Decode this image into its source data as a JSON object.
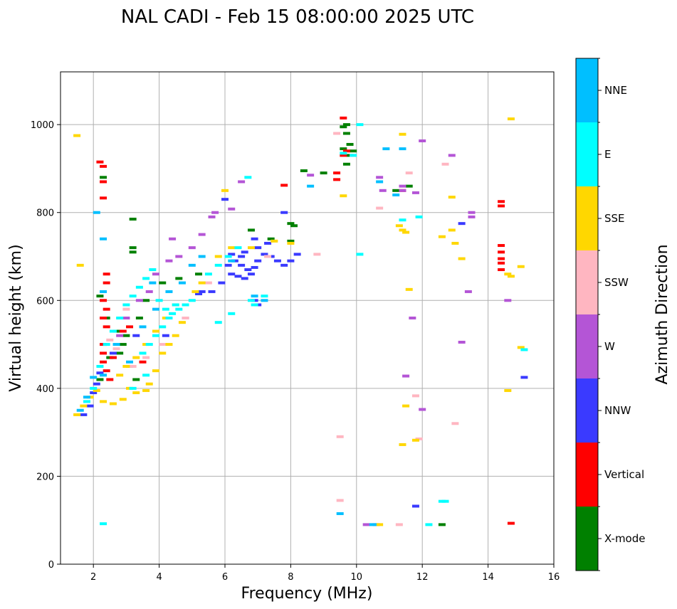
{
  "chart_data": {
    "type": "scatter",
    "title": "NAL CADI - Feb 15 08:00:00 2025 UTC",
    "xlabel": "Frequency (MHz)",
    "ylabel": "Virtual height (km)",
    "xlim": [
      1,
      16
    ],
    "ylim": [
      0,
      1120
    ],
    "xticks": [
      2,
      4,
      6,
      8,
      10,
      12,
      14,
      16
    ],
    "yticks": [
      0,
      200,
      400,
      600,
      800,
      1000
    ],
    "grid": true,
    "colorbar": {
      "title": "Azimuth Direction",
      "categories": [
        "X-mode",
        "Vertical",
        "NNW",
        "W",
        "SSW",
        "SSE",
        "E",
        "NNE"
      ],
      "colors": [
        "#008000",
        "#ff0000",
        "#3a3aff",
        "#b455d6",
        "#ffb6c1",
        "#ffd700",
        "#00ffff",
        "#00bfff"
      ]
    },
    "series": [
      {
        "name": "X-mode",
        "points": [
          [
            2.3,
            880
          ],
          [
            3.2,
            785
          ],
          [
            3.2,
            720
          ],
          [
            3.2,
            710
          ],
          [
            2.2,
            610
          ],
          [
            2.4,
            560
          ],
          [
            2.7,
            530
          ],
          [
            2.9,
            500
          ],
          [
            3.1,
            450
          ],
          [
            3.3,
            420
          ],
          [
            2.2,
            420
          ],
          [
            2.5,
            470
          ],
          [
            2.8,
            480
          ],
          [
            3.0,
            520
          ],
          [
            3.4,
            560
          ],
          [
            3.6,
            600
          ],
          [
            4.1,
            640
          ],
          [
            4.6,
            650
          ],
          [
            5.2,
            660
          ],
          [
            6.8,
            760
          ],
          [
            7.4,
            740
          ],
          [
            8.0,
            775
          ],
          [
            8.1,
            770
          ],
          [
            8.0,
            735
          ],
          [
            9.7,
            1000
          ],
          [
            9.6,
            995
          ],
          [
            9.7,
            980
          ],
          [
            9.8,
            955
          ],
          [
            9.8,
            930
          ],
          [
            9.6,
            945
          ],
          [
            9.7,
            910
          ],
          [
            9.9,
            940
          ],
          [
            11.2,
            850
          ],
          [
            11.6,
            860
          ],
          [
            12.6,
            90
          ],
          [
            8.4,
            895
          ],
          [
            9.0,
            890
          ]
        ]
      },
      {
        "name": "Vertical",
        "points": [
          [
            2.2,
            915
          ],
          [
            2.3,
            905
          ],
          [
            2.3,
            870
          ],
          [
            2.3,
            833
          ],
          [
            2.4,
            660
          ],
          [
            2.4,
            640
          ],
          [
            2.3,
            600
          ],
          [
            2.4,
            580
          ],
          [
            2.3,
            560
          ],
          [
            2.4,
            540
          ],
          [
            2.3,
            500
          ],
          [
            2.3,
            480
          ],
          [
            2.3,
            460
          ],
          [
            2.4,
            440
          ],
          [
            2.5,
            420
          ],
          [
            2.6,
            470
          ],
          [
            2.9,
            530
          ],
          [
            3.1,
            540
          ],
          [
            3.5,
            460
          ],
          [
            7.8,
            862
          ],
          [
            9.4,
            890
          ],
          [
            9.4,
            875
          ],
          [
            9.6,
            930
          ],
          [
            9.7,
            940
          ],
          [
            9.6,
            1015
          ],
          [
            11.4,
            850
          ],
          [
            14.4,
            825
          ],
          [
            14.4,
            815
          ],
          [
            14.4,
            725
          ],
          [
            14.4,
            710
          ],
          [
            14.4,
            695
          ],
          [
            14.4,
            685
          ],
          [
            14.4,
            670
          ],
          [
            14.7,
            93
          ]
        ]
      },
      {
        "name": "NNW",
        "points": [
          [
            1.7,
            340
          ],
          [
            1.9,
            360
          ],
          [
            2.0,
            390
          ],
          [
            2.1,
            410
          ],
          [
            2.2,
            435
          ],
          [
            2.6,
            480
          ],
          [
            3.3,
            520
          ],
          [
            4.2,
            520
          ],
          [
            4.8,
            560
          ],
          [
            5.2,
            615
          ],
          [
            5.6,
            620
          ],
          [
            5.9,
            640
          ],
          [
            6.2,
            660
          ],
          [
            6.4,
            655
          ],
          [
            6.6,
            650
          ],
          [
            6.8,
            660
          ],
          [
            6.9,
            675
          ],
          [
            7.0,
            690
          ],
          [
            7.2,
            705
          ],
          [
            7.4,
            700
          ],
          [
            7.6,
            690
          ],
          [
            7.8,
            680
          ],
          [
            8.0,
            690
          ],
          [
            8.2,
            705
          ],
          [
            7.0,
            720
          ],
          [
            7.3,
            730
          ],
          [
            6.9,
            740
          ],
          [
            6.5,
            700
          ],
          [
            6.1,
            680
          ],
          [
            6.3,
            690
          ],
          [
            6.5,
            680
          ],
          [
            6.7,
            670
          ],
          [
            6.2,
            705
          ],
          [
            6.6,
            710
          ],
          [
            5.3,
            620
          ],
          [
            7.8,
            800
          ],
          [
            6.0,
            830
          ],
          [
            6.9,
            600
          ],
          [
            7.0,
            590
          ],
          [
            13.2,
            775
          ],
          [
            11.8,
            132
          ],
          [
            15.1,
            425
          ]
        ]
      },
      {
        "name": "W",
        "points": [
          [
            2.8,
            520
          ],
          [
            3.0,
            560
          ],
          [
            3.4,
            600
          ],
          [
            3.7,
            620
          ],
          [
            3.9,
            660
          ],
          [
            4.3,
            690
          ],
          [
            4.6,
            700
          ],
          [
            5.0,
            720
          ],
          [
            5.3,
            750
          ],
          [
            5.6,
            790
          ],
          [
            5.7,
            800
          ],
          [
            6.2,
            808
          ],
          [
            6.5,
            870
          ],
          [
            8.6,
            885
          ],
          [
            10.7,
            880
          ],
          [
            10.8,
            850
          ],
          [
            11.4,
            860
          ],
          [
            11.4,
            850
          ],
          [
            11.8,
            845
          ],
          [
            13.5,
            800
          ],
          [
            13.5,
            790
          ],
          [
            13.4,
            620
          ],
          [
            13.2,
            505
          ],
          [
            14.6,
            600
          ],
          [
            11.5,
            428
          ],
          [
            11.7,
            560
          ],
          [
            12.0,
            352
          ],
          [
            12.0,
            963
          ],
          [
            12.9,
            930
          ],
          [
            4.4,
            740
          ],
          [
            10.3,
            90
          ],
          [
            10.6,
            90
          ]
        ]
      },
      {
        "name": "SSW",
        "points": [
          [
            2.5,
            510
          ],
          [
            2.7,
            490
          ],
          [
            3.2,
            450
          ],
          [
            3.6,
            470
          ],
          [
            4.1,
            500
          ],
          [
            4.8,
            560
          ],
          [
            3.0,
            580
          ],
          [
            5.5,
            640
          ],
          [
            7.3,
            700
          ],
          [
            8.8,
            705
          ],
          [
            9.4,
            980
          ],
          [
            9.9,
            930
          ],
          [
            10.7,
            810
          ],
          [
            11.6,
            890
          ],
          [
            11.8,
            383
          ],
          [
            12.7,
            910
          ],
          [
            13.0,
            320
          ],
          [
            11.3,
            90
          ],
          [
            9.5,
            290
          ],
          [
            9.5,
            145
          ],
          [
            11.9,
            285
          ]
        ]
      },
      {
        "name": "SSE",
        "points": [
          [
            1.5,
            975
          ],
          [
            1.6,
            680
          ],
          [
            1.5,
            340
          ],
          [
            1.7,
            360
          ],
          [
            1.9,
            380
          ],
          [
            2.1,
            395
          ],
          [
            2.3,
            370
          ],
          [
            2.6,
            365
          ],
          [
            2.9,
            375
          ],
          [
            3.1,
            400
          ],
          [
            3.3,
            390
          ],
          [
            3.6,
            395
          ],
          [
            3.7,
            410
          ],
          [
            3.9,
            440
          ],
          [
            4.1,
            480
          ],
          [
            4.3,
            500
          ],
          [
            4.5,
            520
          ],
          [
            4.7,
            550
          ],
          [
            2.8,
            430
          ],
          [
            3.0,
            450
          ],
          [
            3.3,
            470
          ],
          [
            3.6,
            500
          ],
          [
            3.9,
            530
          ],
          [
            4.2,
            560
          ],
          [
            4.5,
            590
          ],
          [
            5.1,
            620
          ],
          [
            5.3,
            640
          ],
          [
            5.8,
            700
          ],
          [
            6.2,
            720
          ],
          [
            6.8,
            720
          ],
          [
            7.5,
            735
          ],
          [
            6.0,
            850
          ],
          [
            8.0,
            730
          ],
          [
            9.6,
            838
          ],
          [
            11.3,
            770
          ],
          [
            11.4,
            760
          ],
          [
            11.5,
            755
          ],
          [
            11.6,
            625
          ],
          [
            11.5,
            360
          ],
          [
            12.6,
            745
          ],
          [
            12.9,
            760
          ],
          [
            13.0,
            730
          ],
          [
            12.9,
            835
          ],
          [
            13.2,
            695
          ],
          [
            14.6,
            660
          ],
          [
            14.7,
            655
          ],
          [
            14.6,
            395
          ],
          [
            14.7,
            1013
          ],
          [
            15.0,
            493
          ],
          [
            15.0,
            677
          ],
          [
            11.4,
            272
          ],
          [
            11.8,
            282
          ],
          [
            10.7,
            90
          ],
          [
            11.4,
            978
          ]
        ]
      },
      {
        "name": "E",
        "points": [
          [
            1.8,
            370
          ],
          [
            2.0,
            400
          ],
          [
            2.2,
            450
          ],
          [
            2.4,
            500
          ],
          [
            2.6,
            530
          ],
          [
            2.8,
            560
          ],
          [
            3.0,
            590
          ],
          [
            3.2,
            610
          ],
          [
            3.4,
            630
          ],
          [
            3.6,
            650
          ],
          [
            3.8,
            670
          ],
          [
            4.0,
            600
          ],
          [
            4.2,
            580
          ],
          [
            4.4,
            570
          ],
          [
            4.6,
            580
          ],
          [
            4.8,
            590
          ],
          [
            5.0,
            600
          ],
          [
            3.5,
            480
          ],
          [
            3.7,
            500
          ],
          [
            3.9,
            520
          ],
          [
            4.1,
            540
          ],
          [
            4.3,
            560
          ],
          [
            4.5,
            590
          ],
          [
            3.2,
            400
          ],
          [
            3.6,
            430
          ],
          [
            5.5,
            660
          ],
          [
            5.8,
            680
          ],
          [
            6.1,
            700
          ],
          [
            6.4,
            720
          ],
          [
            6.7,
            880
          ],
          [
            6.9,
            590
          ],
          [
            7.2,
            610
          ],
          [
            5.8,
            550
          ],
          [
            6.2,
            570
          ],
          [
            6.8,
            600
          ],
          [
            9.6,
            935
          ],
          [
            9.9,
            930
          ],
          [
            10.1,
            1000
          ],
          [
            10.1,
            705
          ],
          [
            11.9,
            790
          ],
          [
            12.6,
            143
          ],
          [
            12.7,
            143
          ],
          [
            12.2,
            90
          ],
          [
            11.4,
            783
          ],
          [
            15.1,
            488
          ],
          [
            2.3,
            92
          ]
        ]
      },
      {
        "name": "NNE",
        "points": [
          [
            1.6,
            350
          ],
          [
            1.8,
            380
          ],
          [
            2.0,
            425
          ],
          [
            2.3,
            430
          ],
          [
            2.1,
            800
          ],
          [
            2.3,
            740
          ],
          [
            2.3,
            620
          ],
          [
            2.7,
            500
          ],
          [
            3.1,
            460
          ],
          [
            3.5,
            540
          ],
          [
            3.9,
            580
          ],
          [
            4.3,
            620
          ],
          [
            4.7,
            640
          ],
          [
            5.0,
            680
          ],
          [
            5.3,
            700
          ],
          [
            6.2,
            690
          ],
          [
            6.9,
            610
          ],
          [
            7.2,
            600
          ],
          [
            8.6,
            860
          ],
          [
            10.7,
            870
          ],
          [
            10.9,
            945
          ],
          [
            11.2,
            840
          ],
          [
            11.4,
            945
          ],
          [
            9.5,
            115
          ],
          [
            10.5,
            90
          ],
          [
            3.8,
            640
          ]
        ]
      }
    ]
  }
}
